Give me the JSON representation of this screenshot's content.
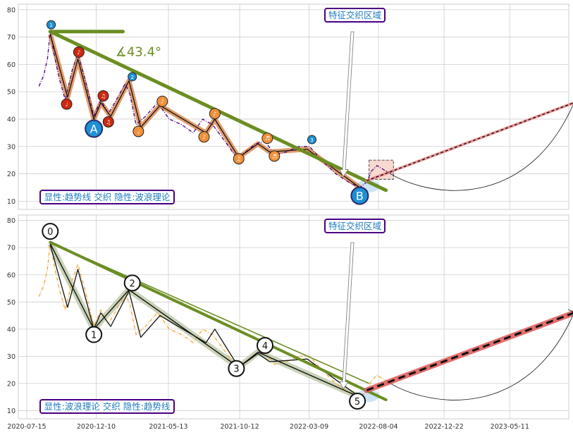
{
  "chart_data": [
    {
      "type": "line",
      "panel": "top",
      "title": "",
      "xlabel": "",
      "ylabel": "",
      "ylim": [
        7,
        82
      ],
      "yticks": [
        10,
        20,
        30,
        40,
        50,
        60,
        70,
        80
      ],
      "grid": true,
      "box_label": "显性:趋势线 交织 隐性:波浪理论",
      "callout_label": "特征交织区域",
      "angle_label": "∡43.4°",
      "wave_labels": [
        "A",
        "B"
      ],
      "colors": {
        "price": "#4b0082",
        "trend": "#6b8e23",
        "wave": "#d2691e",
        "marker_blue": "#1e90d6",
        "marker_orange": "#f0903a",
        "marker_red": "#cc2a10",
        "projection": "#f08080"
      },
      "price_series": [
        {
          "x": "2020-08-10",
          "y": 52
        },
        {
          "x": "2020-08-20",
          "y": 56
        },
        {
          "x": "2020-08-28",
          "y": 62
        },
        {
          "x": "2020-09-03",
          "y": 72
        },
        {
          "x": "2020-09-12",
          "y": 63
        },
        {
          "x": "2020-09-22",
          "y": 55
        },
        {
          "x": "2020-10-05",
          "y": 47
        },
        {
          "x": "2020-10-20",
          "y": 58
        },
        {
          "x": "2020-11-01",
          "y": 64
        },
        {
          "x": "2020-11-20",
          "y": 52
        },
        {
          "x": "2020-12-05",
          "y": 41
        },
        {
          "x": "2020-12-20",
          "y": 47
        },
        {
          "x": "2021-01-05",
          "y": 42
        },
        {
          "x": "2021-01-25",
          "y": 48
        },
        {
          "x": "2021-02-10",
          "y": 53
        },
        {
          "x": "2021-02-20",
          "y": 49
        },
        {
          "x": "2021-03-05",
          "y": 38
        },
        {
          "x": "2021-03-25",
          "y": 41
        },
        {
          "x": "2021-04-20",
          "y": 46
        },
        {
          "x": "2021-05-15",
          "y": 40
        },
        {
          "x": "2021-06-10",
          "y": 38
        },
        {
          "x": "2021-07-05",
          "y": 35
        },
        {
          "x": "2021-07-25",
          "y": 40
        },
        {
          "x": "2021-08-15",
          "y": 38
        },
        {
          "x": "2021-09-10",
          "y": 32
        },
        {
          "x": "2021-10-05",
          "y": 26
        },
        {
          "x": "2021-10-25",
          "y": 28
        },
        {
          "x": "2021-11-15",
          "y": 31
        },
        {
          "x": "2021-12-05",
          "y": 32
        },
        {
          "x": "2021-12-25",
          "y": 27
        },
        {
          "x": "2022-01-20",
          "y": 28
        },
        {
          "x": "2022-02-15",
          "y": 30
        },
        {
          "x": "2022-03-10",
          "y": 30
        },
        {
          "x": "2022-04-05",
          "y": 25
        },
        {
          "x": "2022-05-05",
          "y": 20
        },
        {
          "x": "2022-06-01",
          "y": 17
        },
        {
          "x": "2022-06-25",
          "y": 15
        },
        {
          "x": "2022-07-10",
          "y": 17
        },
        {
          "x": "2022-07-20",
          "y": 21
        },
        {
          "x": "2022-08-01",
          "y": 23
        },
        {
          "x": "2022-08-20",
          "y": 21
        },
        {
          "x": "2022-09-05",
          "y": 20
        }
      ],
      "wave_path": [
        {
          "x": "2020-09-03",
          "y": 71
        },
        {
          "x": "2020-10-10",
          "y": 48
        },
        {
          "x": "2020-11-01",
          "y": 62
        },
        {
          "x": "2020-12-05",
          "y": 40
        },
        {
          "x": "2020-12-20",
          "y": 46
        },
        {
          "x": "2021-01-10",
          "y": 41
        },
        {
          "x": "2021-02-18",
          "y": 54
        },
        {
          "x": "2021-03-15",
          "y": 37
        },
        {
          "x": "2021-04-25",
          "y": 45
        },
        {
          "x": "2021-08-01",
          "y": 35
        },
        {
          "x": "2021-08-20",
          "y": 40
        },
        {
          "x": "2021-10-10",
          "y": 26
        },
        {
          "x": "2021-11-20",
          "y": 31
        },
        {
          "x": "2021-12-15",
          "y": 28
        },
        {
          "x": "2022-03-05",
          "y": 29
        },
        {
          "x": "2022-06-25",
          "y": 15
        }
      ],
      "trend_line": {
        "from": {
          "x": "2020-09-03",
          "y": 72
        },
        "to": {
          "x": "2022-08-20",
          "y": 14
        }
      },
      "horizontal_bar": {
        "from": {
          "x": "2020-09-03",
          "y": 72
        },
        "to": {
          "x": "2021-02-05",
          "y": 72
        }
      },
      "projection": {
        "from": {
          "x": "2022-07-10",
          "y": 17.5
        },
        "to": {
          "x": "2023-09-25",
          "y": 46
        }
      },
      "curve": {
        "from": {
          "x": "2022-08-20",
          "y": 21
        },
        "to": {
          "x": "2023-09-25",
          "y": 46
        },
        "bottom": {
          "x": "2023-01-01",
          "y": 11
        }
      },
      "highlight_box": {
        "x0": "2022-07-15",
        "x1": "2022-09-05",
        "y0": 18,
        "y1": 25
      },
      "markers": [
        {
          "x": "2020-09-05",
          "y": 74.5,
          "kind": "blue",
          "label": "1"
        },
        {
          "x": "2020-10-08",
          "y": 45.5,
          "kind": "red",
          "label": "♩"
        },
        {
          "x": "2020-11-03",
          "y": 64.5,
          "kind": "red",
          "label": "♪"
        },
        {
          "x": "2020-12-25",
          "y": 48.5,
          "kind": "red",
          "label": "♫"
        },
        {
          "x": "2021-01-05",
          "y": 39,
          "kind": "red",
          "label": "♫"
        },
        {
          "x": "2021-02-25",
          "y": 55.5,
          "kind": "blue",
          "label": "2"
        },
        {
          "x": "2021-03-10",
          "y": 35.5,
          "kind": "orange",
          "label": "♩"
        },
        {
          "x": "2021-04-30",
          "y": 46.5,
          "kind": "orange",
          "label": "♪"
        },
        {
          "x": "2021-07-28",
          "y": 33.5,
          "kind": "orange",
          "label": "♪"
        },
        {
          "x": "2021-08-20",
          "y": 42,
          "kind": "orange",
          "label": "♪"
        },
        {
          "x": "2021-10-10",
          "y": 25.5,
          "kind": "orange",
          "label": "♫"
        },
        {
          "x": "2021-12-10",
          "y": 33,
          "kind": "orange",
          "label": "♬"
        },
        {
          "x": "2021-12-25",
          "y": 26.5,
          "kind": "orange",
          "label": "♬"
        },
        {
          "x": "2022-03-15",
          "y": 32.5,
          "kind": "blue",
          "label": "3"
        }
      ],
      "wave_markers": [
        {
          "x": "2020-12-05",
          "y": 36.5,
          "label": "A"
        },
        {
          "x": "2022-06-25",
          "y": 12,
          "label": "B"
        }
      ]
    },
    {
      "type": "line",
      "panel": "bottom",
      "title": "",
      "xlabel": "",
      "ylabel": "",
      "ylim": [
        7,
        82
      ],
      "yticks": [
        10,
        20,
        30,
        40,
        50,
        60,
        70,
        80
      ],
      "xticks": [
        "2020-07-15",
        "2020-12-10",
        "2021-05-13",
        "2021-10-12",
        "2022-03-09",
        "2022-08-04",
        "2022-12-22",
        "2023-05-11"
      ],
      "grid": true,
      "box_label": "显性:波浪理论 交织 隐性:趋势线",
      "callout_label": "特征交织区域",
      "colors": {
        "price": "#f0a830",
        "trend": "#6b8e23",
        "wave": "#111111",
        "projection": "#e06060"
      },
      "price_series": [
        {
          "x": "2020-08-10",
          "y": 52
        },
        {
          "x": "2020-08-20",
          "y": 56
        },
        {
          "x": "2020-08-28",
          "y": 62
        },
        {
          "x": "2020-09-03",
          "y": 72
        },
        {
          "x": "2020-09-12",
          "y": 63
        },
        {
          "x": "2020-09-22",
          "y": 55
        },
        {
          "x": "2020-10-05",
          "y": 47
        },
        {
          "x": "2020-10-20",
          "y": 58
        },
        {
          "x": "2020-11-01",
          "y": 64
        },
        {
          "x": "2020-11-20",
          "y": 52
        },
        {
          "x": "2020-12-05",
          "y": 41
        },
        {
          "x": "2020-12-20",
          "y": 47
        },
        {
          "x": "2021-01-05",
          "y": 42
        },
        {
          "x": "2021-01-25",
          "y": 48
        },
        {
          "x": "2021-02-10",
          "y": 53
        },
        {
          "x": "2021-02-20",
          "y": 49
        },
        {
          "x": "2021-03-05",
          "y": 38
        },
        {
          "x": "2021-03-25",
          "y": 41
        },
        {
          "x": "2021-04-20",
          "y": 46
        },
        {
          "x": "2021-05-15",
          "y": 40
        },
        {
          "x": "2021-06-10",
          "y": 38
        },
        {
          "x": "2021-07-05",
          "y": 35
        },
        {
          "x": "2021-07-25",
          "y": 40
        },
        {
          "x": "2021-08-15",
          "y": 38
        },
        {
          "x": "2021-09-10",
          "y": 32
        },
        {
          "x": "2021-10-05",
          "y": 26
        },
        {
          "x": "2021-10-25",
          "y": 28
        },
        {
          "x": "2021-11-15",
          "y": 31
        },
        {
          "x": "2021-12-05",
          "y": 32
        },
        {
          "x": "2021-12-25",
          "y": 27
        },
        {
          "x": "2022-01-20",
          "y": 28
        },
        {
          "x": "2022-02-15",
          "y": 30
        },
        {
          "x": "2022-03-10",
          "y": 30
        },
        {
          "x": "2022-04-05",
          "y": 25
        },
        {
          "x": "2022-05-05",
          "y": 20
        },
        {
          "x": "2022-06-01",
          "y": 17
        },
        {
          "x": "2022-06-25",
          "y": 15
        },
        {
          "x": "2022-07-10",
          "y": 17
        },
        {
          "x": "2022-07-20",
          "y": 21
        },
        {
          "x": "2022-08-01",
          "y": 23
        },
        {
          "x": "2022-08-20",
          "y": 21
        },
        {
          "x": "2022-09-05",
          "y": 20
        }
      ],
      "wave_path": [
        {
          "x": "2020-09-03",
          "y": 71
        },
        {
          "x": "2020-10-10",
          "y": 48
        },
        {
          "x": "2020-11-01",
          "y": 62
        },
        {
          "x": "2020-12-05",
          "y": 40
        },
        {
          "x": "2020-12-20",
          "y": 46
        },
        {
          "x": "2021-01-10",
          "y": 41
        },
        {
          "x": "2021-02-18",
          "y": 54
        },
        {
          "x": "2021-03-15",
          "y": 37
        },
        {
          "x": "2021-04-25",
          "y": 45
        },
        {
          "x": "2021-08-01",
          "y": 35
        },
        {
          "x": "2021-08-20",
          "y": 40
        },
        {
          "x": "2021-10-10",
          "y": 26
        },
        {
          "x": "2021-11-20",
          "y": 31
        },
        {
          "x": "2021-12-15",
          "y": 28
        },
        {
          "x": "2022-03-05",
          "y": 29
        },
        {
          "x": "2022-06-25",
          "y": 15
        }
      ],
      "wave_points": [
        {
          "x": "2020-09-03",
          "y": 71.5
        },
        {
          "x": "2020-12-05",
          "y": 40
        },
        {
          "x": "2021-02-18",
          "y": 54.5
        },
        {
          "x": "2021-10-10",
          "y": 26
        },
        {
          "x": "2021-11-20",
          "y": 31.5
        },
        {
          "x": "2022-06-25",
          "y": 15
        }
      ],
      "trend_line": {
        "from": {
          "x": "2020-09-03",
          "y": 72
        },
        "to": {
          "x": "2022-08-20",
          "y": 14
        }
      },
      "upper_line": {
        "from": {
          "x": "2020-09-03",
          "y": 72
        },
        "to": {
          "x": "2022-07-15",
          "y": 20
        }
      },
      "projection": {
        "from": {
          "x": "2022-07-10",
          "y": 17.5
        },
        "to": {
          "x": "2023-09-25",
          "y": 46
        }
      },
      "curve": {
        "from": {
          "x": "2022-08-20",
          "y": 21
        },
        "to": {
          "x": "2023-09-25",
          "y": 46
        },
        "bottom": {
          "x": "2023-01-01",
          "y": 11
        }
      },
      "wave_markers": [
        {
          "x": "2020-09-03",
          "y": 76,
          "label": "0"
        },
        {
          "x": "2020-12-05",
          "y": 38,
          "label": "1"
        },
        {
          "x": "2021-02-25",
          "y": 57,
          "label": "2"
        },
        {
          "x": "2021-10-05",
          "y": 25.5,
          "label": "3"
        },
        {
          "x": "2021-12-05",
          "y": 34,
          "label": "4"
        },
        {
          "x": "2022-06-20",
          "y": 13.5,
          "label": "5"
        }
      ]
    }
  ]
}
